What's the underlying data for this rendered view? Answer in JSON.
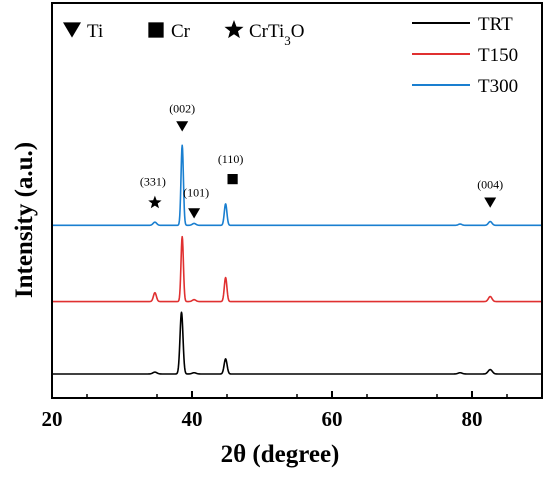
{
  "chart_data": {
    "type": "line",
    "title": "",
    "xlabel": "2θ (degree)",
    "ylabel": "Intensity (a.u.)",
    "xlim": [
      20,
      90
    ],
    "x_ticks": [
      20,
      40,
      60,
      80
    ],
    "x_tick_labels": [
      "20",
      "40",
      "60",
      "80"
    ],
    "y_ticks": false,
    "grid": false,
    "legend_position": "top-right",
    "series": [
      {
        "name": "TRT",
        "color": "#000000",
        "offset": 0,
        "baseline": 0.0,
        "peaks": [
          {
            "x": 34.7,
            "h": 0.03,
            "w": 0.35
          },
          {
            "x": 38.5,
            "h": 0.98,
            "w": 0.25
          },
          {
            "x": 40.3,
            "h": 0.02,
            "w": 0.35
          },
          {
            "x": 44.8,
            "h": 0.24,
            "w": 0.25
          },
          {
            "x": 78.3,
            "h": 0.02,
            "w": 0.35
          },
          {
            "x": 82.6,
            "h": 0.07,
            "w": 0.35
          }
        ]
      },
      {
        "name": "T150",
        "color": "#e03030",
        "offset": 1.15,
        "baseline": 0.0,
        "peaks": [
          {
            "x": 34.7,
            "h": 0.14,
            "w": 0.25
          },
          {
            "x": 38.6,
            "h": 1.03,
            "w": 0.2
          },
          {
            "x": 40.3,
            "h": 0.03,
            "w": 0.3
          },
          {
            "x": 44.8,
            "h": 0.38,
            "w": 0.22
          },
          {
            "x": 82.6,
            "h": 0.08,
            "w": 0.3
          }
        ]
      },
      {
        "name": "T300",
        "color": "#1a7fd0",
        "offset": 2.36,
        "baseline": 0.0,
        "peaks": [
          {
            "x": 34.7,
            "h": 0.05,
            "w": 0.3
          },
          {
            "x": 38.6,
            "h": 1.27,
            "w": 0.2
          },
          {
            "x": 40.3,
            "h": 0.03,
            "w": 0.3
          },
          {
            "x": 44.8,
            "h": 0.34,
            "w": 0.22
          },
          {
            "x": 78.3,
            "h": 0.02,
            "w": 0.3
          },
          {
            "x": 82.6,
            "h": 0.06,
            "w": 0.3
          }
        ]
      }
    ],
    "phase_key": [
      {
        "symbol": "triangle-down",
        "label": "Ti"
      },
      {
        "symbol": "square",
        "label": "Cr"
      },
      {
        "symbol": "star",
        "label": "CrTi",
        "sub": "3",
        "tail": "O"
      }
    ],
    "annotations": [
      {
        "x": 38.6,
        "y": 3.93,
        "text": "(002)",
        "symbol": "triangle-down"
      },
      {
        "x": 34.7,
        "y": 2.72,
        "text": "(331)",
        "symbol": "star"
      },
      {
        "x": 40.3,
        "y": 2.55,
        "text": "(101)",
        "symbol": "triangle-down"
      },
      {
        "x": 45.8,
        "y": 3.03,
        "text": "(110)",
        "symbol": "square"
      },
      {
        "x": 82.6,
        "y": 2.72,
        "text": "(004)",
        "symbol": "triangle-down"
      }
    ]
  }
}
